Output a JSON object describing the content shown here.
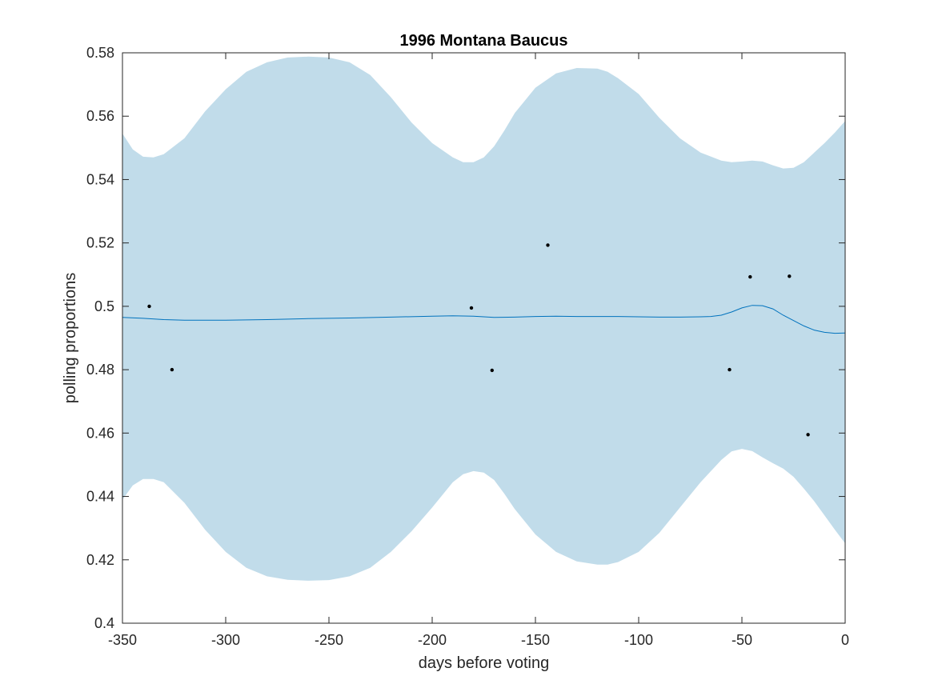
{
  "chart_data": {
    "type": "line",
    "title": "1996 Montana Baucus",
    "xlabel": "days before voting",
    "ylabel": "polling proportions",
    "xlim": [
      -350,
      0
    ],
    "ylim": [
      0.4,
      0.58
    ],
    "xticks": [
      -350,
      -300,
      -250,
      -200,
      -150,
      -100,
      -50,
      0
    ],
    "xtick_labels": [
      "-350",
      "-300",
      "-250",
      "-200",
      "-150",
      "-100",
      "-50",
      "0"
    ],
    "yticks": [
      0.4,
      0.42,
      0.44,
      0.46,
      0.48,
      0.5,
      0.52,
      0.54,
      0.56,
      0.58
    ],
    "ytick_labels": [
      "0.4",
      "0.42",
      "0.44",
      "0.46",
      "0.48",
      "0.5",
      "0.52",
      "0.54",
      "0.56",
      "0.58"
    ],
    "grid": false,
    "colors": {
      "band": "#c1dcea",
      "line": "#0072bd",
      "points": "#000000",
      "axes": "#262626"
    },
    "band": {
      "x": [
        -350,
        -345,
        -340,
        -335,
        -330,
        -320,
        -310,
        -300,
        -290,
        -280,
        -270,
        -260,
        -250,
        -240,
        -230,
        -220,
        -210,
        -200,
        -190,
        -185,
        -180,
        -175,
        -170,
        -165,
        -160,
        -150,
        -140,
        -130,
        -120,
        -115,
        -110,
        -100,
        -90,
        -80,
        -70,
        -60,
        -55,
        -50,
        -45,
        -40,
        -35,
        -30,
        -25,
        -20,
        -15,
        -10,
        -5,
        0
      ],
      "upper": [
        0.5545,
        0.5495,
        0.5472,
        0.547,
        0.548,
        0.553,
        0.5615,
        0.5685,
        0.574,
        0.577,
        0.5785,
        0.5788,
        0.5785,
        0.577,
        0.573,
        0.566,
        0.558,
        0.5515,
        0.547,
        0.5455,
        0.5455,
        0.547,
        0.5505,
        0.5555,
        0.561,
        0.569,
        0.5735,
        0.5752,
        0.575,
        0.574,
        0.572,
        0.567,
        0.5595,
        0.553,
        0.5485,
        0.546,
        0.5455,
        0.5457,
        0.546,
        0.5457,
        0.5445,
        0.5435,
        0.5437,
        0.5455,
        0.5485,
        0.5515,
        0.5548,
        0.5585
      ],
      "lower": [
        0.439,
        0.4435,
        0.4455,
        0.4455,
        0.4445,
        0.438,
        0.4295,
        0.4225,
        0.4175,
        0.4148,
        0.4137,
        0.4134,
        0.4136,
        0.4148,
        0.4175,
        0.4225,
        0.429,
        0.4365,
        0.4445,
        0.447,
        0.448,
        0.4475,
        0.4452,
        0.4408,
        0.436,
        0.428,
        0.4225,
        0.4195,
        0.4185,
        0.4185,
        0.4193,
        0.4225,
        0.4285,
        0.4365,
        0.4445,
        0.4515,
        0.4542,
        0.455,
        0.4543,
        0.4523,
        0.4505,
        0.4488,
        0.4462,
        0.4425,
        0.4385,
        0.434,
        0.4295,
        0.4252
      ]
    },
    "series": [
      {
        "x": [
          -350,
          -340,
          -330,
          -320,
          -300,
          -280,
          -260,
          -240,
          -220,
          -200,
          -190,
          -180,
          -175,
          -170,
          -160,
          -150,
          -140,
          -130,
          -120,
          -110,
          -100,
          -90,
          -80,
          -70,
          -65,
          -60,
          -55,
          -50,
          -45,
          -40,
          -35,
          -30,
          -25,
          -20,
          -15,
          -10,
          -5,
          0
        ],
        "y": [
          0.4965,
          0.4962,
          0.4958,
          0.4956,
          0.4956,
          0.4958,
          0.4961,
          0.4963,
          0.4966,
          0.4969,
          0.497,
          0.4969,
          0.4967,
          0.4965,
          0.4966,
          0.4968,
          0.4969,
          0.4968,
          0.4968,
          0.4968,
          0.4967,
          0.4966,
          0.4966,
          0.4967,
          0.4968,
          0.4972,
          0.4982,
          0.4995,
          0.5003,
          0.5002,
          0.4992,
          0.4972,
          0.4955,
          0.4938,
          0.4925,
          0.4918,
          0.4915,
          0.4916
        ]
      }
    ],
    "points": {
      "x": [
        -337,
        -326,
        -181,
        -171,
        -144,
        -56,
        -46,
        -27,
        -18
      ],
      "y": [
        0.5,
        0.48,
        0.4995,
        0.4798,
        0.5193,
        0.48,
        0.5093,
        0.5095,
        0.4595
      ]
    }
  }
}
